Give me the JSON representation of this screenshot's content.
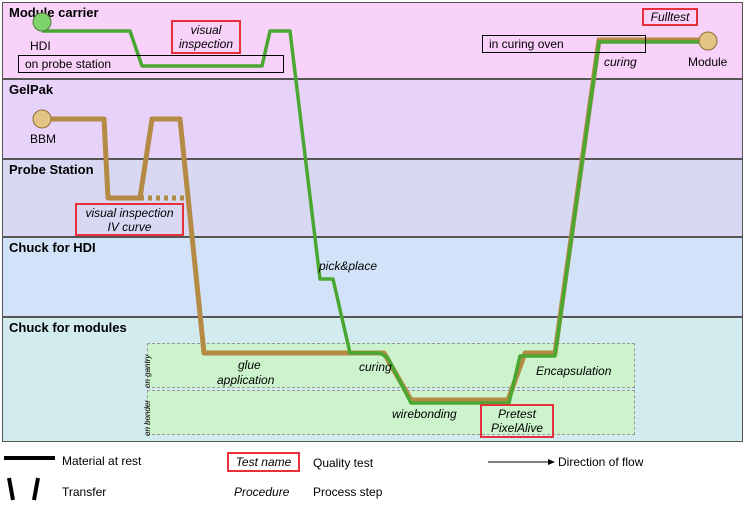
{
  "lanes": [
    {
      "title": "Module carrier",
      "color": "#f9d2f9"
    },
    {
      "title": "GelPak",
      "color": "#e7d2f9"
    },
    {
      "title": "Probe Station",
      "color": "#d8d8f2"
    },
    {
      "title": "Chuck for HDI",
      "color": "#d2e3f9"
    },
    {
      "title": "Chuck for modules",
      "color": "#d2ebef"
    }
  ],
  "sublanes": {
    "gantry": "on gantry",
    "bonder": "on bonder"
  },
  "nodes": {
    "hdi": "HDI",
    "bbm": "BBM",
    "module": "Module"
  },
  "locations": {
    "probe_station": "on probe station",
    "curing_oven": "in curing oven"
  },
  "procedures": {
    "pick_place": "pick&place",
    "glue": "glue",
    "application": "application",
    "curing_low": "curing",
    "wirebonding": "wirebonding",
    "encapsulation": "Encapsulation",
    "curing_top": "curing"
  },
  "tests": {
    "visual1": "visual",
    "visual2": "inspection",
    "vi_iv1": "visual inspection",
    "vi_iv2": "IV curve",
    "pretest1": "Pretest",
    "pretest2": "PixelAlive",
    "fulltest": "Fulltest"
  },
  "legend": {
    "material": "Material at rest",
    "transfer": "Transfer",
    "test_name": "Test name",
    "quality": "Quality test",
    "procedure": "Procedure",
    "process": "Process step",
    "direction": "Direction of flow"
  },
  "colors": {
    "green": "#4aa832",
    "brown": "#b58a44",
    "red": "#e8303c",
    "hdi_node": "#7ed36b",
    "bbm_node": "#e3c485"
  }
}
